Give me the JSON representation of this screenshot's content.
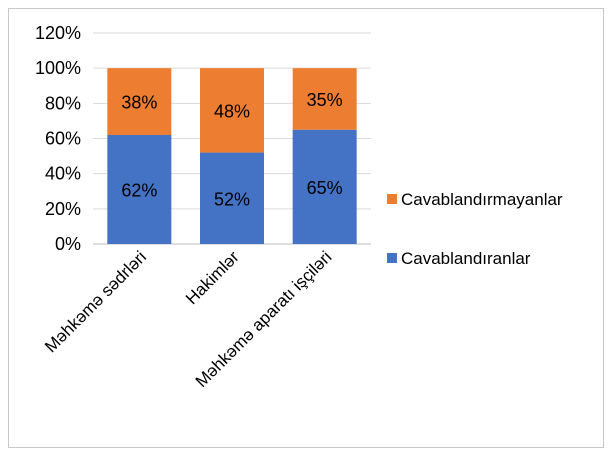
{
  "chart_data": {
    "type": "bar",
    "stacked": true,
    "categories": [
      "Məhkəmə sədrləri",
      "Hakimlər",
      "Məhkəmə aparatı işçiləri"
    ],
    "series": [
      {
        "name": "Cavablandıranlar",
        "values": [
          62,
          52,
          65
        ],
        "labels": [
          "62%",
          "52%",
          "65%"
        ],
        "color": "#4472C4"
      },
      {
        "name": "Cavablandırmayanlar",
        "values": [
          38,
          48,
          35
        ],
        "labels": [
          "38%",
          "48%",
          "35%"
        ],
        "color": "#ED7D31"
      }
    ],
    "ylim": [
      0,
      120
    ],
    "yticks": [
      0,
      20,
      40,
      60,
      80,
      100,
      120
    ],
    "ytick_labels": [
      "0%",
      "20%",
      "40%",
      "60%",
      "80%",
      "100%",
      "120%"
    ],
    "grid": true,
    "legend_position": "right",
    "legend_order": [
      "Cavablandırmayanlar",
      "Cavablandıranlar"
    ]
  }
}
